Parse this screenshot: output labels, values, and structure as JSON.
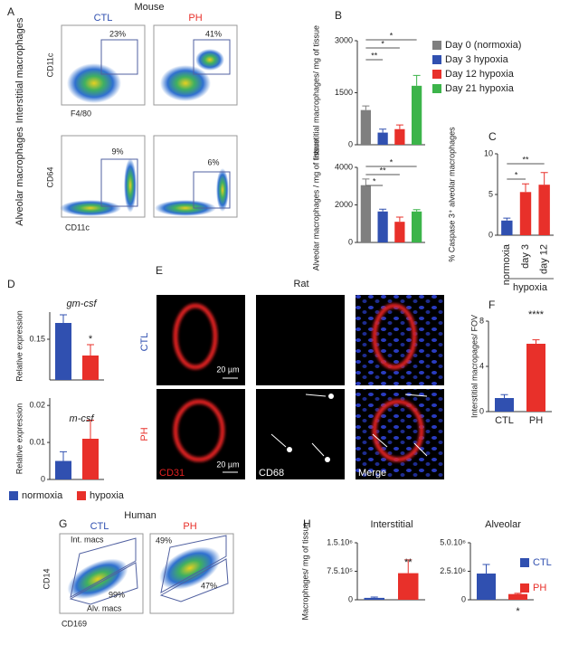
{
  "figure": {
    "a": {
      "letter": "A",
      "title": "Mouse",
      "ctl": "CTL",
      "ph": "PH",
      "gate1": "23%",
      "gate2": "41%",
      "row1": "Interstitial macrophages",
      "y1": "CD11c",
      "x1": "F4/80",
      "gate3": "9%",
      "gate4": "6%",
      "row2": "Alveolar macrophages",
      "y2": "CD64",
      "x2": "CD11c"
    },
    "b": {
      "letter": "B"
    },
    "c": {
      "letter": "C"
    },
    "d": {
      "letter": "D"
    },
    "e": {
      "letter": "E",
      "title": "Rat",
      "ctl": "CTL",
      "ph": "PH",
      "scale1": "20 µm",
      "scale2": "20 µm",
      "ch1": "CD31",
      "ch2": "CD68",
      "ch3": "Merge"
    },
    "f": {
      "letter": "F"
    },
    "g": {
      "letter": "G",
      "title": "Human",
      "ctl": "CTL",
      "ph": "PH",
      "int": "Int. macs",
      "p1": "99%",
      "alv": "Alv. macs",
      "p2": "49%",
      "p3": "47%",
      "y": "CD14",
      "x": "CD169"
    },
    "h": {
      "letter": "H"
    }
  },
  "chart_data": [
    {
      "type": "bar",
      "ylabel": "Interstitial macrophages/ mg of tissue",
      "values": [
        1000,
        350,
        450,
        1700
      ],
      "errors": [
        120,
        100,
        120,
        300
      ],
      "colors": [
        "#7f7f7f",
        "#3050b0",
        "#e8302a",
        "#3cb44a"
      ],
      "ylim": [
        0,
        3000
      ],
      "yticks": [
        0,
        1500,
        3000
      ],
      "significance": [
        "*",
        "*",
        "**"
      ],
      "legend": [
        "Day 0 (normoxia)",
        "Day 3 hypoxia",
        "Day 12 hypoxia",
        "Day 21 hypoxia"
      ]
    },
    {
      "type": "bar",
      "ylabel": "Alveolar macrophages / mg of tissue",
      "values": [
        3050,
        1650,
        1100,
        1650
      ],
      "errors": [
        330,
        120,
        250,
        100
      ],
      "colors": [
        "#7f7f7f",
        "#3050b0",
        "#e8302a",
        "#3cb44a"
      ],
      "ylim": [
        0,
        4000
      ],
      "yticks": [
        0,
        2000,
        4000
      ],
      "significance": [
        "*",
        "**",
        "*"
      ]
    },
    {
      "type": "bar",
      "ylabel": "% Caspase 3⁺ alveolar macrophages",
      "categories": [
        "normoxia",
        "day 3",
        "day 12"
      ],
      "group_label": "hypoxia",
      "values": [
        1.8,
        5.3,
        6.2
      ],
      "errors": [
        0.3,
        1.0,
        1.5
      ],
      "colors": [
        "#3050b0",
        "#e8302a",
        "#e8302a"
      ],
      "ylim": [
        0,
        10
      ],
      "yticks": [
        0,
        5,
        10
      ],
      "significance": [
        "**",
        "*"
      ]
    },
    {
      "type": "bar",
      "title": "gm-csf",
      "ylabel": "Relative expression",
      "values": [
        0.21,
        0.09
      ],
      "errors": [
        0.03,
        0.04
      ],
      "colors": [
        "#3050b0",
        "#e8302a"
      ],
      "ylim": [
        0,
        0.25
      ],
      "yticks": [
        0.15
      ],
      "significance": [
        "*"
      ]
    },
    {
      "type": "bar",
      "title": "m-csf",
      "ylabel": "Relative expression",
      "values": [
        0.005,
        0.011
      ],
      "errors": [
        0.0025,
        0.005
      ],
      "colors": [
        "#3050b0",
        "#e8302a"
      ],
      "ylim": [
        0,
        0.022
      ],
      "yticks": [
        0,
        0.01,
        0.02
      ],
      "legend": [
        "normoxia",
        "hypoxia"
      ]
    },
    {
      "type": "bar",
      "ylabel": "Interstitial macropages/ FOV",
      "categories": [
        "CTL",
        "PH"
      ],
      "values": [
        1.2,
        6.0
      ],
      "errors": [
        0.3,
        0.35
      ],
      "colors": [
        "#3050b0",
        "#e8302a"
      ],
      "ylim": [
        0,
        8
      ],
      "yticks": [
        0,
        4,
        8
      ],
      "significance": [
        "****"
      ]
    },
    {
      "type": "bar",
      "title": "Interstitial",
      "ylabel": "Macrophages/ mg of tissue",
      "values": [
        50000,
        700000
      ],
      "errors": [
        20000,
        350000
      ],
      "colors": [
        "#3050b0",
        "#e8302a"
      ],
      "ylim": [
        0,
        1500000
      ],
      "yticks": [
        0,
        {
          "value": 750000,
          "label": "7.5.10⁵"
        },
        {
          "value": 1500000,
          "label": "1.5.10⁶"
        }
      ],
      "significance": [
        "**"
      ]
    },
    {
      "type": "bar",
      "title": "Alveolar",
      "values": [
        2300000,
        500000
      ],
      "errors": [
        800000,
        70000
      ],
      "colors": [
        "#3050b0",
        "#e8302a"
      ],
      "ylim": [
        0,
        5000000
      ],
      "yticks": [
        0,
        {
          "value": 2500000,
          "label": "2.5.10⁶"
        },
        {
          "value": 5000000,
          "label": "5.0.10⁶"
        }
      ],
      "significance": [
        "*"
      ],
      "legend": [
        "CTL",
        "PH"
      ]
    }
  ]
}
